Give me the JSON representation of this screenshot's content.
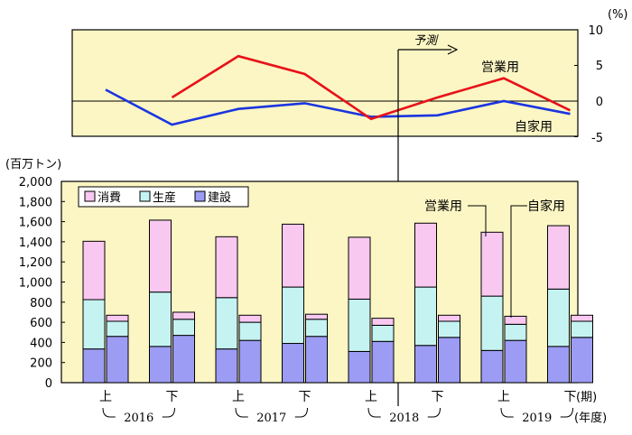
{
  "colors": {
    "panel_bg": "#fcf6c4",
    "consumption": "#f9c8f1",
    "production": "#c5f3f2",
    "construction": "#9c9cf4",
    "line_business": "#e8111a",
    "line_private": "#1a35e0"
  },
  "chart_data": [
    {
      "type": "line",
      "ylabel": "(%)",
      "ylim": [
        -5,
        10
      ],
      "yticks": [
        "10",
        "5",
        "0",
        "-5"
      ],
      "annotation": "予測",
      "series": [
        {
          "name": "営業用",
          "values": [
            0.5,
            6.3,
            3.8,
            -2.5,
            0.5,
            3.2,
            -1.3
          ]
        },
        {
          "name": "自家用",
          "values": [
            1.6,
            -3.3,
            -1.1,
            -0.3,
            -2.2,
            -2.0,
            0.0,
            -1.8
          ]
        }
      ],
      "series_x": [
        [
          1,
          2,
          3,
          4,
          5,
          6,
          7
        ],
        [
          0,
          1,
          2,
          3,
          4,
          5,
          6,
          7
        ]
      ]
    },
    {
      "type": "bar",
      "ylabel": "(百万トン)",
      "ylim": [
        0,
        2000
      ],
      "yticks": [
        "2,000",
        "1,800",
        "1,600",
        "1,400",
        "1,200",
        "1,000",
        "800",
        "600",
        "400",
        "200",
        "0"
      ],
      "legend": [
        "消費",
        "生産",
        "建設"
      ],
      "categories": [
        "上",
        "下",
        "上",
        "下",
        "上",
        "下",
        "上",
        "下"
      ],
      "periods_label": "(期)",
      "years": [
        "2016",
        "2017",
        "2018",
        "2019"
      ],
      "years_label": "(年度)",
      "callouts": [
        "営業用",
        "自家用"
      ],
      "series": [
        {
          "name": "営業用 建設",
          "values": [
            335,
            360,
            335,
            390,
            310,
            370,
            320,
            360
          ]
        },
        {
          "name": "営業用 生産",
          "values": [
            490,
            540,
            510,
            560,
            520,
            580,
            540,
            570
          ]
        },
        {
          "name": "営業用 消費",
          "values": [
            580,
            715,
            605,
            625,
            615,
            635,
            635,
            630
          ]
        },
        {
          "name": "自家用 建設",
          "values": [
            460,
            470,
            420,
            460,
            410,
            450,
            420,
            450
          ]
        },
        {
          "name": "自家用 生産",
          "values": [
            150,
            160,
            180,
            170,
            160,
            160,
            160,
            160
          ]
        },
        {
          "name": "自家用 消費",
          "values": [
            60,
            70,
            70,
            50,
            70,
            60,
            80,
            60
          ]
        }
      ]
    }
  ]
}
